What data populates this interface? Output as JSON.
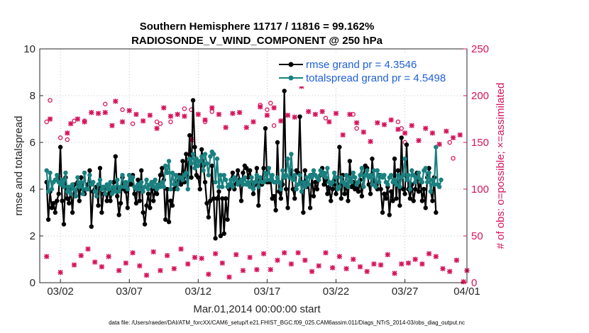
{
  "chart_data": {
    "type": "line",
    "title": "Southern Hemisphere 11717 / 11816 = 99.162%",
    "subtitle": "RADIOSONDE_V_WIND_COMPONENT @ 250 hPa",
    "xlabel": "Mar.01,2014 00:00:00 start",
    "ylabel": "rmse and totalspread",
    "ylabel_right": "# of obs: o=possible; ×=assimilated",
    "footer": "data file: /Users/raeder/DAI/ATM_forcXX/CAM6_setup/f.e21.FHIST_BGC.f09_025.CAM6assim.011/Diags_NTrS_2014-03/obs_diag_output.nc",
    "xlim": [
      0.5,
      31.5
    ],
    "ylim": [
      0,
      10
    ],
    "ylim_right": [
      0,
      250
    ],
    "x_ticks": [
      2,
      7,
      12,
      17,
      22,
      27,
      32
    ],
    "x_tick_labels": [
      "03/02",
      "03/07",
      "03/12",
      "03/17",
      "03/22",
      "03/27",
      "04/01"
    ],
    "y_ticks": [
      "0",
      "2",
      "4",
      "6",
      "8",
      "10"
    ],
    "y_ticks_right": [
      "0",
      "50",
      "100",
      "150",
      "200",
      "250"
    ],
    "colors": {
      "rmse": "#000000",
      "spread": "#1a8080",
      "obs": "#d6145c",
      "legend_text": "#1f5fd6"
    },
    "legend": {
      "position": "top-right",
      "entries": [
        "rmse grand pr = 4.3546",
        "totalspread grand pr = 4.5498"
      ]
    },
    "series": [
      {
        "name": "rmse grand pr = 4.3546",
        "values": [
          4.3,
          2.7,
          3.9,
          3.2,
          3.4,
          3.0,
          3.5,
          3.8,
          5.8,
          3.5,
          2.5,
          4.5,
          3.6,
          3.4,
          4.0,
          3.0,
          4.2,
          3.7,
          4.3,
          3.5,
          4.5,
          4.0,
          3.8,
          4.0,
          4.2,
          4.8,
          2.4,
          3.9,
          4.0,
          4.1,
          3.3,
          4.9,
          3.0,
          3.8,
          4.0,
          3.5,
          4.0,
          3.5,
          3.9,
          4.3,
          5.4,
          3.7,
          2.9,
          3.4,
          4.5,
          4.0,
          3.9,
          3.2,
          4.6,
          4.2,
          4.6,
          3.8,
          3.4,
          4.4,
          3.5,
          4.8,
          3.0,
          2.5,
          3.3,
          3.8,
          3.2,
          4.3,
          3.5,
          4.0,
          3.8,
          4.2,
          4.6,
          4.9,
          4.4,
          2.7,
          4.0,
          2.6,
          3.5,
          3.3,
          4.0,
          4.1,
          4.3,
          4.6,
          4.2,
          5.2,
          4.3,
          5.5,
          4.5,
          6.3,
          4.5,
          7.8,
          5.8,
          4.6,
          4.5,
          4.0,
          5.7,
          5.0,
          4.3,
          3.4,
          2.8,
          3.5,
          5.0,
          3.6,
          1.9,
          3.6,
          3.9,
          2.0,
          3.6,
          2.1,
          3.6,
          2.7,
          4.0,
          4.4,
          4.7,
          4.0,
          4.4,
          4.8,
          4.4,
          3.5,
          4.7,
          5.0,
          4.9,
          4.5,
          4.8,
          4.3,
          3.8,
          4.2,
          4.9,
          3.3,
          4.4,
          4.2,
          4.9,
          6.6,
          4.3,
          4.3,
          4.4,
          3.6,
          3.7,
          3.1,
          6.0,
          3.9,
          3.6,
          4.2,
          8.2,
          4.0,
          3.2,
          4.5,
          4.8,
          4.0,
          3.6,
          4.8,
          4.7,
          7.1,
          4.3,
          3.0,
          4.8,
          4.1,
          4.2,
          3.2,
          4.6,
          3.7,
          4.3,
          4.0,
          4.4,
          4.6,
          4.9,
          4.2,
          4.4,
          3.8,
          4.1,
          3.5,
          4.0,
          4.4,
          3.8,
          4.2,
          5.8,
          3.6,
          4.6,
          3.8,
          4.2,
          3.5,
          5.2,
          4.1,
          4.3,
          4.0,
          4.2,
          3.9,
          4.4,
          3.7,
          4.6,
          5.0,
          4.9,
          4.2,
          3.8,
          5.3,
          4.3,
          4.3,
          4.0,
          4.6,
          4.0,
          3.0,
          3.8,
          3.6,
          4.1,
          2.9,
          3.9,
          3.5,
          5.3,
          3.6,
          4.8,
          3.3,
          6.2,
          4.0,
          3.8,
          5.9,
          4.0,
          3.6,
          4.2,
          3.5,
          4.0,
          4.7,
          3.9,
          4.4,
          3.5,
          4.0,
          3.2,
          4.5,
          4.9,
          3.9,
          3.5,
          4.5,
          3.0
        ]
      },
      {
        "name": "totalspread grand pr = 4.5498",
        "values": [
          4.8,
          3.9,
          4.7,
          4.0,
          4.3,
          4.4,
          4.6,
          4.3,
          4.2,
          4.4,
          4.1,
          4.7,
          3.9,
          4.1,
          3.8,
          4.2,
          4.0,
          3.7,
          4.5,
          4.1,
          4.3,
          3.8,
          4.7,
          4.0,
          4.0,
          4.6,
          4.2,
          4.3,
          3.9,
          3.7,
          4.2,
          4.4,
          4.0,
          4.1,
          3.8,
          4.2,
          4.0,
          4.3,
          3.8,
          4.1,
          3.9,
          4.4,
          3.9,
          4.1,
          4.6,
          4.1,
          4.3,
          4.0,
          4.6,
          4.4,
          4.5,
          4.1,
          4.0,
          4.2,
          4.0,
          4.3,
          3.9,
          4.1,
          4.4,
          4.0,
          4.2,
          4.3,
          4.1,
          4.4,
          4.0,
          4.2,
          4.1,
          4.3,
          4.1,
          5.0,
          4.7,
          5.2,
          4.0,
          4.7,
          4.2,
          4.6,
          4.0,
          4.5,
          4.5,
          4.4,
          4.6,
          4.7,
          4.0,
          5.3,
          5.1,
          5.5,
          4.9,
          5.3,
          5.0,
          5.2,
          5.4,
          4.8,
          5.5,
          5.1,
          4.6,
          5.4,
          5.6,
          5.5,
          4.3,
          5.3,
          4.1,
          4.6,
          4.1,
          4.6,
          4.4,
          4.1,
          4.2,
          4.4,
          4.1,
          4.5,
          4.4,
          4.2,
          4.3,
          4.4,
          4.2,
          4.5,
          4.2,
          4.3,
          4.1,
          4.5,
          4.0,
          4.3,
          4.6,
          4.1,
          4.5,
          4.3,
          4.3,
          4.7,
          4.4,
          4.9,
          4.4,
          4.6,
          4.3,
          4.3,
          4.5,
          4.3,
          4.0,
          4.8,
          4.5,
          4.6,
          5.3,
          4.5,
          5.5,
          4.4,
          4.6,
          4.0,
          4.2,
          4.6,
          3.9,
          4.3,
          4.1,
          4.5,
          4.2,
          4.6,
          4.5,
          4.8,
          4.6,
          4.5,
          4.4,
          4.8,
          4.6,
          4.7,
          4.5,
          4.9,
          4.3,
          4.2,
          4.3,
          4.7,
          4.5,
          4.0,
          4.1,
          4.5,
          4.3,
          4.2,
          4.6,
          4.1,
          4.5,
          4.3,
          4.7,
          4.5,
          4.2,
          4.3,
          4.6,
          4.9,
          4.1,
          4.6,
          4.8,
          4.5,
          4.6,
          4.2,
          4.8,
          4.1,
          4.8,
          4.3,
          4.6,
          4.5,
          4.6,
          4.3,
          4.2,
          4.5,
          4.6,
          4.3,
          4.4,
          4.2,
          4.6,
          4.1,
          4.5,
          4.6,
          5.3,
          4.4,
          4.6,
          4.0,
          4.8,
          4.6,
          4.3,
          4.5,
          4.7,
          4.4,
          4.3,
          4.8,
          4.9,
          4.3,
          4.7,
          3.9,
          4.4,
          4.2,
          5.8,
          4.2,
          4.1,
          4.4
        ]
      }
    ],
    "obs_possible_days": [
      1.0,
      1.25,
      2.0,
      2.5,
      3.0,
      3.75,
      5.25,
      6.5,
      7.25,
      9.0,
      9.25,
      10.0,
      11.0,
      11.5,
      12.5,
      13.0,
      16.5,
      17.0,
      17.25,
      17.5,
      21.25,
      23.25,
      23.5,
      26.5,
      26.75,
      27.0,
      30.25,
      30.5
    ],
    "obs_possible_values": [
      172,
      195,
      155,
      153,
      173,
      173,
      191,
      185,
      170,
      172,
      170,
      172,
      186,
      185,
      172,
      183,
      190,
      185,
      192,
      168,
      176,
      180,
      165,
      172,
      165,
      150,
      150,
      133
    ],
    "obs_assimilated_days": [
      1.0,
      1.25,
      2.0,
      2.5,
      2.75,
      3.0,
      3.25,
      3.5,
      3.75,
      4.0,
      4.25,
      4.5,
      4.75,
      5.0,
      5.25,
      5.5,
      5.75,
      6.0,
      6.25,
      6.5,
      6.75,
      7.0,
      7.25,
      7.5,
      7.75,
      8.0,
      8.25,
      8.5,
      8.75,
      9.0,
      9.25,
      9.5,
      9.75,
      10.0,
      10.25,
      10.5,
      10.75,
      11.0,
      11.25,
      11.5,
      11.75,
      12.0,
      12.25,
      12.5,
      12.75,
      13.0,
      13.25,
      13.5,
      13.75,
      14.0,
      14.25,
      14.5,
      14.75,
      15.0,
      15.25,
      15.5,
      15.75,
      16.0,
      16.25,
      16.5,
      16.75,
      17.0,
      17.25,
      17.5,
      17.75,
      18.0,
      18.25,
      18.5,
      18.75,
      19.0,
      19.25,
      19.5,
      19.75,
      20.0,
      20.25,
      20.5,
      20.75,
      21.0,
      21.25,
      21.5,
      21.75,
      22.0,
      22.25,
      22.5,
      22.75,
      23.0,
      23.25,
      23.5,
      23.75,
      24.0,
      24.25,
      24.5,
      24.75,
      25.0,
      25.25,
      25.5,
      25.75,
      26.0,
      26.25,
      26.5,
      26.75,
      27.0,
      27.25,
      27.5,
      27.75,
      28.0,
      28.25,
      28.5,
      28.75,
      29.0,
      29.25,
      29.5,
      29.75,
      30.0,
      30.25,
      30.5,
      30.75,
      31.0,
      31.25,
      31.5
    ],
    "obs_assimilated_values": [
      28,
      175,
      11,
      160,
      170,
      19,
      175,
      29,
      172,
      36,
      182,
      22,
      181,
      17,
      182,
      28,
      168,
      194,
      13,
      172,
      21,
      184,
      32,
      180,
      18,
      173,
      8,
      179,
      33,
      165,
      13,
      187,
      29,
      178,
      15,
      180,
      36,
      178,
      20,
      153,
      27,
      180,
      26,
      174,
      9,
      187,
      31,
      180,
      21,
      166,
      6,
      181,
      30,
      182,
      13,
      166,
      27,
      172,
      14,
      188,
      31,
      179,
      14,
      187,
      24,
      173,
      32,
      179,
      20,
      177,
      32,
      210,
      24,
      183,
      12,
      180,
      18,
      183,
      32,
      172,
      16,
      181,
      28,
      158,
      15,
      180,
      25,
      171,
      17,
      161,
      12,
      151,
      20,
      171,
      19,
      169,
      30,
      174,
      10,
      164,
      20,
      160,
      21,
      168,
      25,
      152,
      20,
      165,
      31,
      160,
      28,
      148,
      15,
      162,
      12,
      155,
      24,
      158,
      1,
      13
    ]
  }
}
